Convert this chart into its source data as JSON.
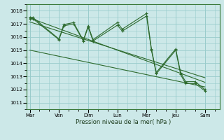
{
  "xlabel": "Pression niveau de la mer( hPa )",
  "bg_color": "#cce8e8",
  "grid_color": "#99cccc",
  "line_color": "#2d6a2d",
  "ylim": [
    1010.5,
    1018.5
  ],
  "yticks": [
    1011,
    1012,
    1013,
    1014,
    1015,
    1016,
    1017,
    1018
  ],
  "day_labels": [
    "Mar",
    "Ven",
    "Dim",
    "Lun",
    "Mer",
    "Jeu",
    "Sam"
  ],
  "day_positions": [
    0,
    3,
    6,
    9,
    12,
    15,
    18
  ],
  "xlim": [
    -0.3,
    19.5
  ],
  "series1_x": [
    0,
    0.3,
    3.0,
    3.5,
    4.5,
    5.5,
    6.0,
    6.5,
    9.0,
    9.5,
    12.0,
    12.5,
    13.0,
    15.0,
    15.5,
    16.0,
    17.0,
    18.0
  ],
  "series1_y": [
    1017.5,
    1017.5,
    1015.85,
    1016.95,
    1017.1,
    1015.75,
    1016.85,
    1015.8,
    1017.1,
    1016.6,
    1017.8,
    1015.1,
    1013.3,
    1015.1,
    1013.3,
    1012.6,
    1012.6,
    1012.0
  ],
  "series2_x": [
    0,
    0.3,
    3.0,
    3.5,
    4.5,
    5.5,
    6.0,
    6.5,
    9.0,
    9.5,
    12.0,
    12.5,
    13.0,
    15.0,
    15.5,
    16.0,
    17.0,
    18.0
  ],
  "series2_y": [
    1017.4,
    1017.4,
    1015.8,
    1016.85,
    1017.0,
    1015.7,
    1016.75,
    1015.7,
    1016.9,
    1016.45,
    1017.6,
    1015.0,
    1013.2,
    1015.0,
    1013.15,
    1012.45,
    1012.45,
    1011.9
  ],
  "trend1_x": [
    0,
    18
  ],
  "trend1_y": [
    1017.45,
    1012.55
  ],
  "trend2_x": [
    0,
    18
  ],
  "trend2_y": [
    1017.15,
    1012.9
  ],
  "trend3_x": [
    0,
    18
  ],
  "trend3_y": [
    1015.0,
    1012.2
  ]
}
